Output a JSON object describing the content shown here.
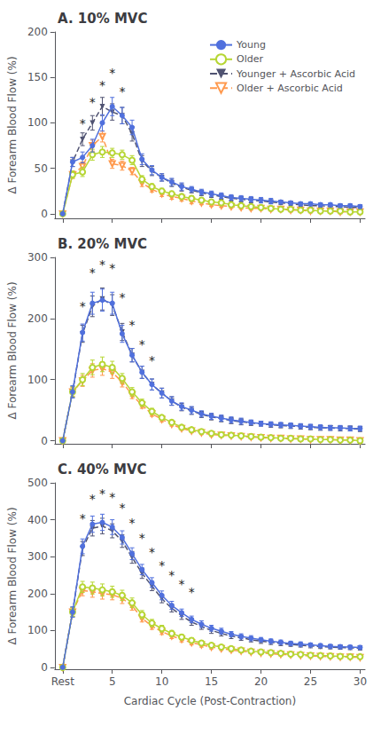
{
  "chart_data": [
    {
      "type": "line",
      "title": "A. 10% MVC",
      "ylabel": "Δ Forearm Blood Flow (%)",
      "x": [
        0,
        1,
        2,
        3,
        4,
        5,
        6,
        7,
        8,
        9,
        10,
        11,
        12,
        13,
        14,
        15,
        16,
        17,
        18,
        19,
        20,
        21,
        22,
        23,
        24,
        25,
        26,
        27,
        28,
        29,
        30
      ],
      "xlim": [
        -0.8,
        30.5
      ],
      "xticks": [
        {
          "value": 0,
          "label": "Rest"
        },
        5,
        10,
        15,
        20,
        25,
        30
      ],
      "ylim": [
        -5,
        200
      ],
      "yticks": [
        0,
        50,
        100,
        150,
        200
      ],
      "grid": false,
      "tick_labels": "y",
      "legend": "upper right",
      "series": [
        {
          "name": "Young",
          "marker": "circle",
          "line_style": "solid",
          "values": [
            0,
            57,
            62,
            75,
            100,
            118,
            108,
            95,
            60,
            48,
            40,
            35,
            30,
            27,
            24,
            22,
            20,
            18,
            17,
            16,
            15,
            14,
            13,
            12,
            11,
            11,
            10,
            10,
            9,
            9,
            8
          ],
          "errors": [
            0,
            5,
            6,
            7,
            9,
            10,
            9,
            8,
            6,
            5,
            4,
            4,
            4,
            3,
            3,
            3,
            3,
            3,
            3,
            3,
            3,
            3,
            2,
            2,
            2,
            2,
            2,
            2,
            2,
            2,
            2
          ]
        },
        {
          "name": "Older",
          "marker": "open_circle",
          "line_style": "solid",
          "values": [
            0,
            43,
            46,
            65,
            68,
            67,
            65,
            59,
            38,
            30,
            25,
            22,
            19,
            17,
            15,
            13,
            12,
            10,
            9,
            8,
            7,
            6,
            5,
            5,
            4,
            4,
            3,
            3,
            3,
            2,
            2
          ],
          "errors": [
            0,
            4,
            5,
            6,
            6,
            5,
            5,
            5,
            4,
            3,
            3,
            3,
            3,
            3,
            2,
            2,
            2,
            2,
            2,
            2,
            2,
            2,
            2,
            2,
            2,
            2,
            2,
            2,
            2,
            2,
            2
          ]
        },
        {
          "name": "Younger + Ascorbic Acid",
          "marker": "triangle_down",
          "line_style": "dashed",
          "values": [
            0,
            57,
            82,
            100,
            118,
            112,
            108,
            88,
            58,
            47,
            40,
            34,
            29,
            26,
            23,
            21,
            19,
            17,
            16,
            15,
            14,
            13,
            12,
            11,
            10,
            9,
            9,
            8,
            8,
            7,
            7
          ],
          "errors": [
            0,
            5,
            7,
            8,
            10,
            9,
            9,
            8,
            6,
            5,
            4,
            4,
            4,
            3,
            3,
            3,
            3,
            3,
            3,
            3,
            2,
            2,
            2,
            2,
            2,
            2,
            2,
            2,
            2,
            2,
            2
          ]
        },
        {
          "name": "Older + Ascorbic Acid",
          "marker": "open_triangle_down",
          "line_style": "dashed",
          "values": [
            0,
            43,
            52,
            75,
            85,
            55,
            53,
            47,
            34,
            27,
            22,
            19,
            17,
            14,
            12,
            10,
            9,
            8,
            7,
            6,
            6,
            5,
            5,
            4,
            4,
            3,
            3,
            3,
            2,
            2,
            2
          ],
          "errors": [
            0,
            4,
            5,
            6,
            6,
            5,
            5,
            4,
            4,
            3,
            3,
            3,
            3,
            3,
            2,
            2,
            2,
            2,
            2,
            2,
            2,
            2,
            2,
            2,
            2,
            2,
            2,
            2,
            2,
            2,
            2
          ]
        }
      ],
      "annotations": [
        {
          "x": 2,
          "y": 93,
          "text": "*"
        },
        {
          "x": 3,
          "y": 116,
          "text": "*"
        },
        {
          "x": 4,
          "y": 135,
          "text": "*"
        },
        {
          "x": 5,
          "y": 148,
          "text": "*"
        },
        {
          "x": 6,
          "y": 128,
          "text": "*"
        }
      ]
    },
    {
      "type": "line",
      "title": "B. 20% MVC",
      "ylabel": "Δ Forearm Blood Flow (%)",
      "x": [
        0,
        1,
        2,
        3,
        4,
        5,
        6,
        7,
        8,
        9,
        10,
        11,
        12,
        13,
        14,
        15,
        16,
        17,
        18,
        19,
        20,
        21,
        22,
        23,
        24,
        25,
        26,
        27,
        28,
        29,
        30
      ],
      "xlim": [
        -0.8,
        30.5
      ],
      "xticks": [
        {
          "value": 0,
          "label": "Rest"
        },
        5,
        10,
        15,
        20,
        25,
        30
      ],
      "ylim": [
        -5,
        300
      ],
      "yticks": [
        0,
        100,
        200,
        300
      ],
      "grid": false,
      "tick_labels": "y",
      "series": [
        {
          "name": "Young",
          "marker": "circle",
          "line_style": "solid",
          "values": [
            0,
            80,
            177,
            225,
            230,
            225,
            175,
            140,
            112,
            92,
            78,
            65,
            56,
            50,
            44,
            40,
            37,
            34,
            32,
            30,
            28,
            27,
            26,
            25,
            24,
            23,
            22,
            21,
            21,
            20,
            20
          ],
          "errors": [
            0,
            10,
            14,
            18,
            18,
            18,
            14,
            11,
            10,
            9,
            8,
            7,
            6,
            6,
            5,
            5,
            5,
            5,
            5,
            4,
            4,
            4,
            4,
            4,
            4,
            4,
            4,
            4,
            4,
            4,
            4
          ]
        },
        {
          "name": "Older",
          "marker": "open_circle",
          "line_style": "solid",
          "values": [
            0,
            80,
            100,
            120,
            125,
            120,
            102,
            80,
            62,
            48,
            38,
            30,
            22,
            18,
            15,
            12,
            10,
            9,
            8,
            7,
            6,
            5,
            4,
            4,
            3,
            3,
            2,
            2,
            1,
            1,
            0
          ],
          "errors": [
            0,
            8,
            10,
            12,
            12,
            10,
            8,
            7,
            6,
            5,
            4,
            4,
            3,
            3,
            3,
            3,
            3,
            3,
            3,
            2,
            2,
            2,
            2,
            2,
            2,
            2,
            2,
            2,
            2,
            2,
            2
          ]
        },
        {
          "name": "Younger + Ascorbic Acid",
          "marker": "triangle_down",
          "line_style": "dashed",
          "values": [
            0,
            80,
            175,
            220,
            232,
            222,
            178,
            140,
            112,
            92,
            78,
            65,
            55,
            49,
            43,
            39,
            36,
            33,
            31,
            29,
            28,
            26,
            25,
            24,
            23,
            22,
            21,
            21,
            20,
            20,
            19
          ],
          "errors": [
            0,
            9,
            14,
            17,
            18,
            17,
            14,
            11,
            10,
            9,
            8,
            7,
            6,
            6,
            5,
            5,
            5,
            5,
            5,
            4,
            4,
            4,
            4,
            4,
            4,
            4,
            4,
            4,
            4,
            4,
            4
          ]
        },
        {
          "name": "Older + Ascorbic Acid",
          "marker": "open_triangle_down",
          "line_style": "dashed",
          "values": [
            0,
            80,
            98,
            115,
            118,
            112,
            96,
            75,
            58,
            44,
            35,
            27,
            20,
            16,
            13,
            10,
            9,
            8,
            7,
            6,
            5,
            4,
            4,
            3,
            3,
            2,
            2,
            2,
            1,
            1,
            0
          ],
          "errors": [
            0,
            7,
            9,
            11,
            11,
            10,
            8,
            6,
            5,
            4,
            4,
            3,
            3,
            3,
            3,
            3,
            2,
            2,
            2,
            2,
            2,
            2,
            2,
            2,
            2,
            2,
            2,
            2,
            2,
            2,
            2
          ]
        }
      ],
      "annotations": [
        {
          "x": 2,
          "y": 210,
          "text": "*"
        },
        {
          "x": 3,
          "y": 265,
          "text": "*"
        },
        {
          "x": 4,
          "y": 278,
          "text": "*"
        },
        {
          "x": 5,
          "y": 273,
          "text": "*"
        },
        {
          "x": 6,
          "y": 225,
          "text": "*"
        },
        {
          "x": 7,
          "y": 180,
          "text": "*"
        },
        {
          "x": 8,
          "y": 147,
          "text": "*"
        },
        {
          "x": 9,
          "y": 122,
          "text": "*"
        }
      ]
    },
    {
      "type": "line",
      "title": "C. 40% MVC",
      "ylabel": "Δ Forearm Blood Flow (%)",
      "xlabel": "Cardiac Cycle (Post-Contraction)",
      "x": [
        0,
        1,
        2,
        3,
        4,
        5,
        6,
        7,
        8,
        9,
        10,
        11,
        12,
        13,
        14,
        15,
        16,
        17,
        18,
        19,
        20,
        21,
        22,
        23,
        24,
        25,
        26,
        27,
        28,
        29,
        30
      ],
      "xlim": [
        -0.8,
        30.5
      ],
      "xticks": [
        {
          "value": 0,
          "label": "Rest"
        },
        5,
        10,
        15,
        20,
        25,
        30
      ],
      "ylim": [
        -5,
        500
      ],
      "yticks": [
        0,
        100,
        200,
        300,
        400,
        500
      ],
      "grid": false,
      "series": [
        {
          "name": "Young",
          "marker": "circle",
          "line_style": "solid",
          "values": [
            0,
            150,
            328,
            388,
            393,
            380,
            352,
            308,
            265,
            230,
            195,
            168,
            148,
            130,
            117,
            106,
            98,
            90,
            84,
            79,
            75,
            71,
            68,
            65,
            63,
            61,
            59,
            57,
            56,
            55,
            54
          ],
          "errors": [
            0,
            14,
            20,
            22,
            22,
            20,
            18,
            16,
            14,
            13,
            12,
            11,
            10,
            9,
            9,
            8,
            8,
            7,
            7,
            7,
            6,
            6,
            6,
            6,
            6,
            5,
            5,
            5,
            5,
            5,
            5
          ]
        },
        {
          "name": "Older",
          "marker": "open_circle",
          "line_style": "solid",
          "values": [
            0,
            150,
            218,
            215,
            210,
            205,
            195,
            175,
            143,
            120,
            105,
            92,
            82,
            73,
            66,
            60,
            55,
            51,
            47,
            44,
            42,
            40,
            38,
            36,
            35,
            33,
            32,
            31,
            30,
            29,
            29
          ],
          "errors": [
            0,
            12,
            15,
            16,
            16,
            15,
            14,
            13,
            11,
            10,
            9,
            8,
            7,
            7,
            6,
            6,
            5,
            5,
            5,
            5,
            4,
            4,
            4,
            4,
            4,
            4,
            3,
            3,
            3,
            3,
            3
          ]
        },
        {
          "name": "Younger + Ascorbic Acid",
          "marker": "triangle_down",
          "line_style": "dashed",
          "values": [
            0,
            150,
            322,
            377,
            383,
            370,
            342,
            298,
            255,
            220,
            186,
            160,
            140,
            123,
            111,
            100,
            92,
            85,
            80,
            75,
            71,
            68,
            65,
            62,
            60,
            58,
            56,
            55,
            54,
            53,
            52
          ],
          "errors": [
            0,
            13,
            19,
            21,
            21,
            19,
            17,
            16,
            14,
            12,
            11,
            10,
            10,
            9,
            8,
            8,
            7,
            7,
            7,
            6,
            6,
            6,
            6,
            5,
            5,
            5,
            5,
            5,
            5,
            5,
            5
          ]
        },
        {
          "name": "Older + Ascorbic Acid",
          "marker": "open_triangle_down",
          "line_style": "dashed",
          "values": [
            0,
            150,
            208,
            205,
            200,
            197,
            187,
            167,
            133,
            112,
            97,
            85,
            76,
            67,
            61,
            55,
            51,
            47,
            44,
            41,
            39,
            37,
            35,
            34,
            32,
            31,
            30,
            29,
            28,
            28,
            27
          ],
          "errors": [
            0,
            11,
            14,
            15,
            15,
            14,
            14,
            12,
            10,
            9,
            8,
            7,
            7,
            6,
            6,
            5,
            5,
            5,
            4,
            4,
            4,
            4,
            4,
            3,
            3,
            3,
            3,
            3,
            3,
            3,
            3
          ]
        }
      ],
      "annotations": [
        {
          "x": 2,
          "y": 388,
          "text": "*"
        },
        {
          "x": 3,
          "y": 440,
          "text": "*"
        },
        {
          "x": 4,
          "y": 455,
          "text": "*"
        },
        {
          "x": 5,
          "y": 445,
          "text": "*"
        },
        {
          "x": 6,
          "y": 415,
          "text": "*"
        },
        {
          "x": 7,
          "y": 375,
          "text": "*"
        },
        {
          "x": 8,
          "y": 333,
          "text": "*"
        },
        {
          "x": 9,
          "y": 295,
          "text": "*"
        },
        {
          "x": 10,
          "y": 260,
          "text": "*"
        },
        {
          "x": 11,
          "y": 232,
          "text": "*"
        },
        {
          "x": 12,
          "y": 210,
          "text": "*"
        },
        {
          "x": 13,
          "y": 188,
          "text": "*"
        }
      ]
    }
  ]
}
